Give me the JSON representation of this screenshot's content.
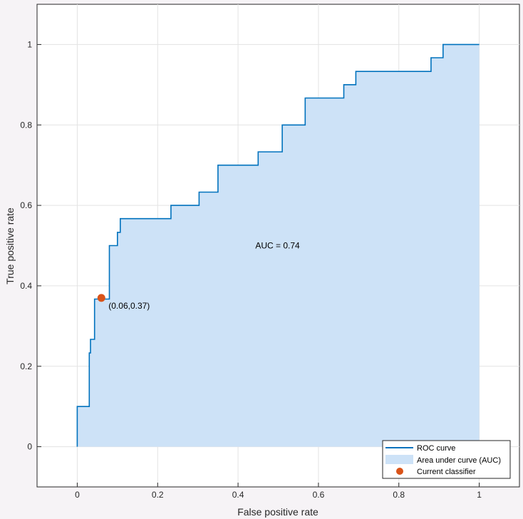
{
  "chart_data": {
    "type": "line",
    "xlabel": "False positive rate",
    "ylabel": "True positive rate",
    "xlim": [
      -0.1,
      1.1
    ],
    "ylim": [
      -0.1,
      1.1
    ],
    "xticks": [
      "0",
      "0.2",
      "0.4",
      "0.6",
      "0.8",
      "1"
    ],
    "yticks": [
      "0",
      "0.2",
      "0.4",
      "0.6",
      "0.8",
      "1"
    ],
    "grid": true,
    "legend_position": "bottom-right",
    "series": [
      {
        "name": "ROC curve",
        "color": "#0072bd",
        "x": [
          0,
          0,
          0.03,
          0.03,
          0.033,
          0.033,
          0.043,
          0.043,
          0.05,
          0.05,
          0.08,
          0.08,
          0.1,
          0.1,
          0.107,
          0.107,
          0.233,
          0.233,
          0.303,
          0.303,
          0.35,
          0.35,
          0.45,
          0.45,
          0.51,
          0.51,
          0.567,
          0.567,
          0.663,
          0.663,
          0.693,
          0.693,
          0.88,
          0.88,
          0.91,
          0.91,
          1
        ],
        "y": [
          0,
          0.1,
          0.1,
          0.233,
          0.233,
          0.267,
          0.267,
          0.367,
          0.367,
          0.367,
          0.367,
          0.5,
          0.5,
          0.533,
          0.533,
          0.567,
          0.567,
          0.6,
          0.6,
          0.633,
          0.633,
          0.7,
          0.7,
          0.733,
          0.733,
          0.8,
          0.8,
          0.867,
          0.867,
          0.9,
          0.9,
          0.933,
          0.933,
          0.967,
          0.967,
          1,
          1
        ]
      }
    ],
    "area": {
      "name": "Area under curve (AUC)",
      "color": "#cde2f7"
    },
    "current_classifier": {
      "name": "Current classifier",
      "x": 0.06,
      "y": 0.37,
      "label": "(0.06,0.37)",
      "color": "#d95319"
    },
    "auc_label": "AUC = 0.74",
    "auc_label_at": {
      "x": 0.5,
      "y": 0.5
    }
  }
}
